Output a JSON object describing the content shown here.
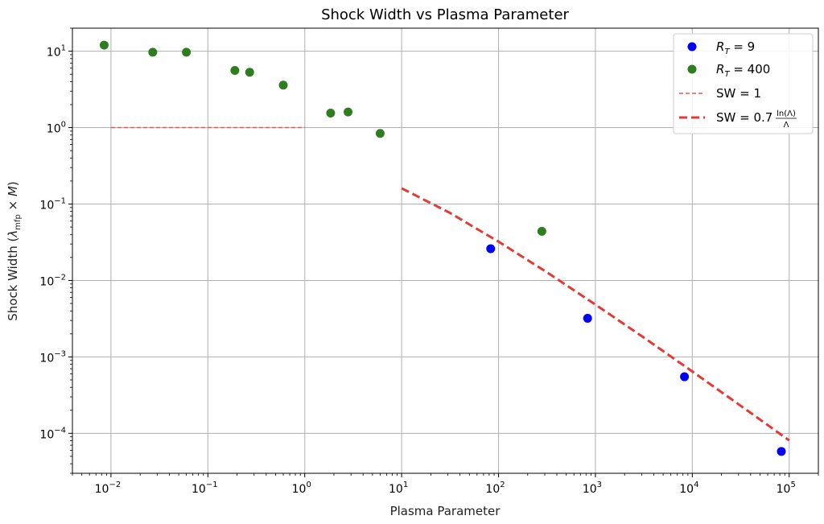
{
  "chart_data": {
    "type": "scatter",
    "title": "Shock Width vs Plasma Parameter",
    "xlabel": "Plasma Parameter",
    "ylabel": "Shock Width (λ_mfp × M)",
    "xscale": "log",
    "yscale": "log",
    "xlim": [
      0.004,
      200000
    ],
    "ylim": [
      3e-05,
      20
    ],
    "grid": true,
    "legend_position": "top-right",
    "x_ticks": [
      {
        "base": "10",
        "exp": "−2"
      },
      {
        "base": "10",
        "exp": "−1"
      },
      {
        "base": "10",
        "exp": "0"
      },
      {
        "base": "10",
        "exp": "1"
      },
      {
        "base": "10",
        "exp": "2"
      },
      {
        "base": "10",
        "exp": "3"
      },
      {
        "base": "10",
        "exp": "4"
      },
      {
        "base": "10",
        "exp": "5"
      }
    ],
    "y_ticks": [
      {
        "base": "10",
        "exp": "1"
      },
      {
        "base": "10",
        "exp": "0"
      },
      {
        "base": "10",
        "exp": "−1"
      },
      {
        "base": "10",
        "exp": "−2"
      },
      {
        "base": "10",
        "exp": "−3"
      },
      {
        "base": "10",
        "exp": "−4"
      }
    ],
    "series": [
      {
        "name": "R_T = 9",
        "kind": "scatter",
        "color": "#0000ff",
        "x": [
          83,
          830,
          8300,
          83000
        ],
        "y": [
          0.026,
          0.0032,
          0.00055,
          5.8e-05
        ]
      },
      {
        "name": "R_T = 400",
        "kind": "scatter",
        "color": "#2e7d1f",
        "x": [
          0.0085,
          0.027,
          0.06,
          0.19,
          0.27,
          0.6,
          1.85,
          2.8,
          6,
          280
        ],
        "y": [
          12,
          9.7,
          9.7,
          5.6,
          5.3,
          3.6,
          1.55,
          1.6,
          0.84,
          0.044
        ]
      },
      {
        "name": "SW = 1",
        "kind": "line",
        "style": "thin-dashed",
        "color": "#ef5350",
        "x": [
          0.01,
          1
        ],
        "y": [
          1,
          1
        ]
      },
      {
        "name": "SW = 0.7 ln(Λ)/Λ",
        "kind": "line",
        "style": "thick-dashed",
        "color": "#e53935",
        "x": [
          10,
          31.6,
          100,
          316,
          1000,
          3162,
          10000,
          31623,
          100000
        ],
        "y": [
          0.161,
          0.0763,
          0.0322,
          0.0128,
          0.00484,
          0.00179,
          0.000645,
          0.000229,
          8.06e-05
        ]
      }
    ],
    "legend": {
      "entries": [
        {
          "label_parts": {
            "var": "R",
            "sub": "T",
            "eq": " = 9"
          }
        },
        {
          "label_parts": {
            "var": "R",
            "sub": "T",
            "eq": " = 400"
          }
        },
        {
          "label": "SW = 1"
        },
        {
          "label_parts": {
            "prefix": "SW = 0.7 ",
            "num": "ln(Λ)",
            "den": "Λ"
          }
        }
      ]
    }
  }
}
